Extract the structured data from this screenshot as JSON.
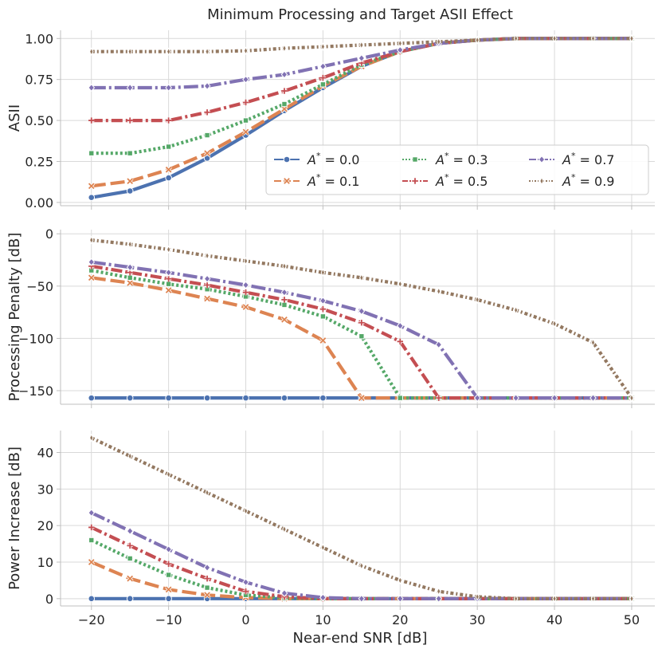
{
  "chart_data": {
    "type": "line",
    "title": "Minimum Processing and Target ASII Effect",
    "xlabel": "Near-end SNR [dB]",
    "x": [
      -20,
      -15,
      -10,
      -5,
      0,
      5,
      10,
      15,
      20,
      25,
      30,
      35,
      40,
      45,
      50
    ],
    "x_ticks": [
      -20,
      -10,
      0,
      10,
      20,
      30,
      40,
      50
    ],
    "x_tick_labels": [
      "−20",
      "−10",
      "0",
      "10",
      "20",
      "30",
      "40",
      "50"
    ],
    "xlim": [
      -24,
      53
    ],
    "grid": true,
    "legend_placement": "lower-right of top panel",
    "legend_cols": 3,
    "series_styles": [
      {
        "name": "$A^* = 0.0$",
        "label_value": "0.0",
        "color": "#4c72b0",
        "dash": "",
        "marker": "circle"
      },
      {
        "name": "$A^* = 0.1$",
        "label_value": "0.1",
        "color": "#dd8452",
        "dash": "18,6",
        "marker": "x"
      },
      {
        "name": "$A^* = 0.3$",
        "label_value": "0.3",
        "color": "#55a868",
        "dash": "3,3",
        "marker": "square"
      },
      {
        "name": "$A^* = 0.5$",
        "label_value": "0.5",
        "color": "#c44e52",
        "dash": "14,4,3,4",
        "marker": "plus"
      },
      {
        "name": "$A^* = 0.7$",
        "label_value": "0.7",
        "color": "#8172b3",
        "dash": "18,4,3,4",
        "marker": "diamond"
      },
      {
        "name": "$A^* = 0.9$",
        "label_value": "0.9",
        "color": "#937860",
        "dash": "4,3,2,3",
        "marker": "thin-diamond"
      }
    ],
    "panels": [
      {
        "ylabel": "ASII",
        "ylim": [
          -0.02,
          1.05
        ],
        "y_ticks": [
          0,
          0.25,
          0.5,
          0.75,
          1.0
        ],
        "y_tick_labels": [
          "0.00",
          "0.25",
          "0.50",
          "0.75",
          "1.00"
        ],
        "series": [
          {
            "name": "$A^* = 0.0$",
            "values": [
              0.03,
              0.07,
              0.15,
              0.27,
              0.41,
              0.56,
              0.7,
              0.83,
              0.92,
              0.97,
              0.99,
              1.0,
              1.0,
              1.0,
              1.0
            ]
          },
          {
            "name": "$A^* = 0.1$",
            "values": [
              0.1,
              0.13,
              0.2,
              0.3,
              0.43,
              0.57,
              0.71,
              0.83,
              0.92,
              0.97,
              0.99,
              1.0,
              1.0,
              1.0,
              1.0
            ]
          },
          {
            "name": "$A^* = 0.3$",
            "values": [
              0.3,
              0.3,
              0.34,
              0.41,
              0.5,
              0.6,
              0.72,
              0.84,
              0.92,
              0.97,
              0.99,
              1.0,
              1.0,
              1.0,
              1.0
            ]
          },
          {
            "name": "$A^* = 0.5$",
            "values": [
              0.5,
              0.5,
              0.5,
              0.55,
              0.61,
              0.68,
              0.76,
              0.85,
              0.92,
              0.97,
              0.99,
              1.0,
              1.0,
              1.0,
              1.0
            ]
          },
          {
            "name": "$A^* = 0.7$",
            "values": [
              0.7,
              0.7,
              0.7,
              0.71,
              0.75,
              0.78,
              0.83,
              0.88,
              0.93,
              0.97,
              0.99,
              1.0,
              1.0,
              1.0,
              1.0
            ]
          },
          {
            "name": "$A^* = 0.9$",
            "values": [
              0.92,
              0.92,
              0.92,
              0.92,
              0.925,
              0.94,
              0.95,
              0.96,
              0.97,
              0.98,
              0.99,
              1.0,
              1.0,
              1.0,
              1.0
            ]
          }
        ]
      },
      {
        "ylabel": "Processing Penalty [dB]",
        "ylim": [
          -163,
          4
        ],
        "y_ticks": [
          0,
          -50,
          -100,
          -150
        ],
        "y_tick_labels": [
          "0",
          "−50",
          "−100",
          "−150"
        ],
        "series": [
          {
            "name": "$A^* = 0.0$",
            "values": [
              -157,
              -157,
              -157,
              -157,
              -157,
              -157,
              -157,
              -157,
              -157,
              -157,
              -157,
              -157,
              -157,
              -157,
              -157
            ]
          },
          {
            "name": "$A^* = 0.1$",
            "values": [
              -42,
              -47,
              -54,
              -62,
              -70,
              -82,
              -102,
              -157,
              -157,
              -157,
              -157,
              -157,
              -157,
              -157,
              -157
            ]
          },
          {
            "name": "$A^* = 0.3$",
            "values": [
              -35,
              -42,
              -48,
              -53,
              -60,
              -68,
              -79,
              -98,
              -157,
              -157,
              -157,
              -157,
              -157,
              -157,
              -157
            ]
          },
          {
            "name": "$A^* = 0.5$",
            "values": [
              -31,
              -37,
              -43,
              -49,
              -56,
              -63,
              -72,
              -85,
              -103,
              -157,
              -157,
              -157,
              -157,
              -157,
              -157
            ]
          },
          {
            "name": "$A^* = 0.7$",
            "values": [
              -27,
              -32,
              -37,
              -43,
              -49,
              -56,
              -64,
              -74,
              -88,
              -106,
              -157,
              -157,
              -157,
              -157,
              -157
            ]
          },
          {
            "name": "$A^* = 0.9$",
            "values": [
              -6,
              -10,
              -15,
              -21,
              -26,
              -31,
              -37,
              -42,
              -48,
              -55,
              -63,
              -73,
              -86,
              -104,
              -157
            ]
          }
        ]
      },
      {
        "ylabel": "Power Increase [dB]",
        "ylim": [
          -2,
          46
        ],
        "y_ticks": [
          0,
          10,
          20,
          30,
          40
        ],
        "y_tick_labels": [
          "0",
          "10",
          "20",
          "30",
          "40"
        ],
        "series": [
          {
            "name": "$A^* = 0.0$",
            "values": [
              0,
              0,
              0,
              0,
              0,
              0,
              0,
              0,
              0,
              0,
              0,
              0,
              0,
              0,
              0
            ]
          },
          {
            "name": "$A^* = 0.1$",
            "values": [
              10,
              5.5,
              2.5,
              1.0,
              0.3,
              0,
              0,
              0,
              0,
              0,
              0,
              0,
              0,
              0,
              0
            ]
          },
          {
            "name": "$A^* = 0.3$",
            "values": [
              16,
              11,
              6.5,
              3.0,
              1.0,
              0.2,
              0,
              0,
              0,
              0,
              0,
              0,
              0,
              0,
              0
            ]
          },
          {
            "name": "$A^* = 0.5$",
            "values": [
              19.5,
              14.5,
              9.5,
              5.5,
              2.0,
              0.5,
              0,
              0,
              0,
              0,
              0,
              0,
              0,
              0,
              0
            ]
          },
          {
            "name": "$A^* = 0.7$",
            "values": [
              23.5,
              18.5,
              13.5,
              8.5,
              4.5,
              1.5,
              0.3,
              0,
              0,
              0,
              0,
              0,
              0,
              0,
              0
            ]
          },
          {
            "name": "$A^* = 0.9$",
            "values": [
              44,
              39,
              34,
              29,
              24,
              19,
              14,
              9,
              5,
              2,
              0.5,
              0,
              0,
              0,
              0
            ]
          }
        ]
      }
    ]
  }
}
